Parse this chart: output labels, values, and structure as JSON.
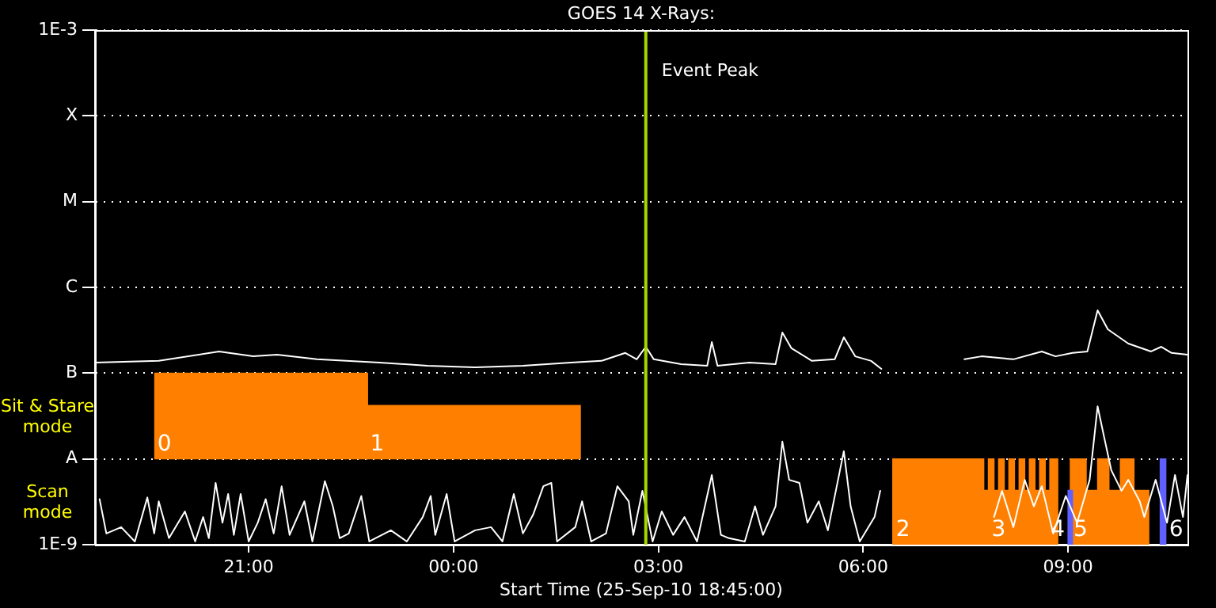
{
  "chart_data": {
    "type": "line",
    "title": "GOES 14 X-Rays:",
    "xlabel": "Start Time (25-Sep-10 18:45:00)",
    "xlim": [
      "--09-25T18:45",
      "--09-26T10:45"
    ],
    "xticks": [
      {
        "value": "--09-25T21:00",
        "label": "21:00"
      },
      {
        "value": "--09-26T00:00",
        "label": "00:00"
      },
      {
        "value": "--09-26T03:00",
        "label": "03:00"
      },
      {
        "value": "--09-26T06:00",
        "label": "06:00"
      },
      {
        "value": "--09-26T09:00",
        "label": "09:00"
      }
    ],
    "log": "y",
    "ylim": [
      1e-09,
      0.001
    ],
    "yticks": [
      {
        "value": 1e-09,
        "label": "1E-9"
      },
      {
        "value": 1e-08,
        "label": "A"
      },
      {
        "value": 1e-07,
        "label": "B"
      },
      {
        "value": 1e-06,
        "label": "C"
      },
      {
        "value": 1e-05,
        "label": "M"
      },
      {
        "value": 0.0001,
        "label": "X"
      },
      {
        "value": 0.001,
        "label": "1E-3"
      }
    ],
    "grid": "y",
    "legend": false,
    "series": [
      {
        "type": "bar",
        "color": "#ff8000",
        "x": [
          "--09-25T21:11",
          "--09-26T00:18"
        ],
        "base": [
          1e-08,
          1e-08
        ],
        "values": [
          9e-08,
          3.2e-08
        ]
      },
      {
        "type": "histogram",
        "color": "#ff8000",
        "bins": [
          "--09-26T06:26",
          "--09-26T07:46",
          "--09-26T07:50",
          "--09-26T07:55",
          "--09-26T07:59",
          "--09-26T08:04",
          "--09-26T08:08",
          "--09-26T08:13",
          "--09-26T08:17",
          "--09-26T08:22",
          "--09-26T08:26",
          "--09-26T08:31",
          "--09-26T08:35",
          "--09-26T08:40",
          "--09-26T08:44",
          "--09-26T08:51",
          "--09-26T09:02",
          "--09-26T09:16",
          "--09-26T09:26",
          "--09-26T09:36",
          "--09-26T09:46",
          "--09-26T09:58",
          "--09-26T10:11"
        ],
        "values": [
          1e-08,
          4.3e-09,
          1e-08,
          4.3e-09,
          1e-08,
          4.3e-09,
          1e-08,
          4.3e-09,
          1e-08,
          4.3e-09,
          1e-08,
          4.3e-09,
          1e-08,
          4.3e-09,
          1e-08,
          null,
          1e-08,
          4.3e-09,
          1e-08,
          4.3e-09,
          1e-08,
          4.3e-09
        ]
      },
      {
        "type": "histogram",
        "color": "#6060ff",
        "bins": [
          "--09-26T09:00",
          "--09-26T09:04"
        ],
        "values": [
          4.3e-09
        ]
      },
      {
        "type": "histogram",
        "color": "#6060ff",
        "bins": [
          "--09-26T10:21",
          "--09-26T10:26"
        ],
        "values": [
          1e-08
        ]
      },
      {
        "color": "#ffffff",
        "x": [
          "--09-25T18:49",
          "--09-25T18:55",
          "--09-25T19:08",
          "--09-25T19:20",
          "--09-25T19:31",
          "--09-25T19:37",
          "--09-25T19:41",
          "--09-25T19:50",
          "--09-25T20:04",
          "--09-25T20:13",
          "--09-25T20:20",
          "--09-25T20:25",
          "--09-25T20:31",
          "--09-25T20:37",
          "--09-25T20:42",
          "--09-25T20:47",
          "--09-25T20:53",
          "--09-25T21:00",
          "--09-25T21:08",
          "--09-25T21:15",
          "--09-25T21:22",
          "--09-25T21:29",
          "--09-25T21:36",
          "--09-25T21:49",
          "--09-25T21:56",
          "--09-25T22:07",
          "--09-25T22:14",
          "--09-25T22:20",
          "--09-25T22:28",
          "--09-25T22:39",
          "--09-25T22:46",
          "--09-25T23:05",
          "--09-25T23:19",
          "--09-25T23:33",
          "--09-25T23:40",
          "--09-25T23:44",
          "--09-25T23:54",
          "--09-26T00:01",
          "--09-26T00:19",
          "--09-26T00:33",
          "--09-26T00:43",
          "--09-26T00:53",
          "--09-26T01:01",
          "--09-26T01:10",
          "--09-26T01:19",
          "--09-26T01:26",
          "--09-26T01:31",
          "--09-26T01:47",
          "--09-26T01:53",
          "--09-26T02:01",
          "--09-26T02:14",
          "--09-26T02:24",
          "--09-26T02:34",
          "--09-26T02:38",
          "--09-26T02:46",
          "--09-26T02:55",
          "--09-26T03:03",
          "--09-26T03:13",
          "--09-26T03:23",
          "--09-26T03:34",
          "--09-26T03:47",
          "--09-26T03:55",
          "--09-26T04:02",
          "--09-26T04:16",
          "--09-26T04:25",
          "--09-26T04:32",
          "--09-26T04:43",
          "--09-26T04:49",
          "--09-26T04:55",
          "--09-26T05:04",
          "--09-26T05:11",
          "--09-26T05:21",
          "--09-26T05:29",
          "--09-26T05:36",
          "--09-26T05:43",
          "--09-26T05:49",
          "--09-26T05:57",
          "--09-26T06:10",
          "--09-26T06:15",
          "--09-26T06:48",
          "--09-26T07:55",
          "--09-26T08:02",
          "--09-26T08:12",
          "--09-26T08:22",
          "--09-26T08:30",
          "--09-26T08:37",
          "--09-26T08:47",
          "--09-26T08:58",
          "--09-26T09:08",
          "--09-26T09:19",
          "--09-26T09:26",
          "--09-26T09:32",
          "--09-26T09:38",
          "--09-26T09:47",
          "--09-26T09:53",
          "--09-26T10:03",
          "--09-26T10:07",
          "--09-26T10:17",
          "--09-26T10:27",
          "--09-26T10:34",
          "--09-26T10:41",
          "--09-26T10:45"
        ],
        "values": [
          3.4e-09,
          1.35e-09,
          1.6e-09,
          1.09e-09,
          3.55e-09,
          1.35e-09,
          3.2e-09,
          1.19e-09,
          2.44e-09,
          1.09e-09,
          2.1e-09,
          1.19e-09,
          5.25e-09,
          1.8e-09,
          3.9e-09,
          1.3e-09,
          3.9e-09,
          1.09e-09,
          1.8e-09,
          3.4e-09,
          1.35e-09,
          4.8e-09,
          1.3e-09,
          3.2e-09,
          1.09e-09,
          5.5e-09,
          2.8e-09,
          1.19e-09,
          1.35e-09,
          3.7e-09,
          1.09e-09,
          1.47e-09,
          1.09e-09,
          2.1e-09,
          3.7e-09,
          1.3e-09,
          3.9e-09,
          1.09e-09,
          1.47e-09,
          1.6e-09,
          1.09e-09,
          3.9e-09,
          1.35e-09,
          2.24e-09,
          4.8e-09,
          5.25e-09,
          1.09e-09,
          1.6e-09,
          3.2e-09,
          1.09e-09,
          1.35e-09,
          4.8e-09,
          3.2e-09,
          1.3e-09,
          4.25e-09,
          1.09e-09,
          2.44e-09,
          1.3e-09,
          2.1e-09,
          1.09e-09,
          6.5e-09,
          1.3e-09,
          1.19e-09,
          1.09e-09,
          2.8e-09,
          1.3e-09,
          2.8e-09,
          1.59e-08,
          5.7e-09,
          5.25e-09,
          1.8e-09,
          3.2e-09,
          1.47e-09,
          4.25e-09,
          1.23e-08,
          2.8e-09,
          1.09e-09,
          2.1e-09,
          4.25e-09,
          null,
          2.1e-09,
          4.25e-09,
          1.6e-09,
          5.7e-09,
          2.8e-09,
          4.8e-09,
          1.35e-09,
          3.7e-09,
          1.8e-09,
          5.7e-09,
          4.1e-08,
          1.73e-08,
          7.4e-09,
          4.25e-09,
          5.7e-09,
          3.2e-09,
          2.1e-09,
          5.7e-09,
          1.8e-09,
          6.5e-09,
          2.1e-09,
          6.5e-09
        ]
      },
      {
        "color": "#ffffff",
        "x": [
          "--09-25T18:45",
          "--09-25T19:41",
          "--09-25T20:34",
          "--09-25T21:04",
          "--09-25T21:25",
          "--09-25T22:00",
          "--09-25T22:55",
          "--09-25T23:37",
          "--09-26T00:19",
          "--09-26T01:01",
          "--09-26T01:43",
          "--09-26T02:10",
          "--09-26T02:31",
          "--09-26T02:41",
          "--09-26T02:49",
          "--09-26T02:56",
          "--09-26T03:20",
          "--09-26T03:43",
          "--09-26T03:47",
          "--09-26T03:52",
          "--09-26T04:20",
          "--09-26T04:43",
          "--09-26T04:49",
          "--09-26T04:57",
          "--09-26T05:15",
          "--09-26T05:35",
          "--09-26T05:43",
          "--09-26T05:53",
          "--09-26T06:07",
          "--09-26T06:16",
          "--09-26T06:54",
          "--09-26T07:29",
          "--09-26T07:44",
          "--09-26T08:12",
          "--09-26T08:37",
          "--09-26T08:49",
          "--09-26T09:04",
          "--09-26T09:17",
          "--09-26T09:26",
          "--09-26T09:35",
          "--09-26T09:53",
          "--09-26T10:13",
          "--09-26T10:22",
          "--09-26T10:31",
          "--09-26T10:45"
        ],
        "values": [
          1.33e-07,
          1.39e-07,
          1.79e-07,
          1.57e-07,
          1.64e-07,
          1.45e-07,
          1.33e-07,
          1.22e-07,
          1.17e-07,
          1.22e-07,
          1.33e-07,
          1.39e-07,
          1.72e-07,
          1.45e-07,
          2.03e-07,
          1.45e-07,
          1.27e-07,
          1.22e-07,
          2.31e-07,
          1.22e-07,
          1.33e-07,
          1.27e-07,
          2.98e-07,
          1.95e-07,
          1.39e-07,
          1.45e-07,
          2.62e-07,
          1.57e-07,
          1.39e-07,
          1.12e-07,
          null,
          1.45e-07,
          1.57e-07,
          1.45e-07,
          1.79e-07,
          1.57e-07,
          1.72e-07,
          1.79e-07,
          5.4e-07,
          3.24e-07,
          2.21e-07,
          1.79e-07,
          2.03e-07,
          1.72e-07,
          1.64e-07
        ]
      }
    ],
    "ref_lines": [
      {
        "axis": "x",
        "value": "--09-26T02:49",
        "label": "Event Peak",
        "color": "#a8d400"
      }
    ],
    "annotations": [
      "Sit & Stare mode",
      "Scan mode",
      {
        "text": "0",
        "x": "--09-25T19:37",
        "y": 1e-08
      },
      {
        "text": "1",
        "x": "--09-25T22:44",
        "y": 1e-08
      },
      {
        "text": "2",
        "x": "--09-26T06:26",
        "y": 1e-09
      },
      {
        "text": "3",
        "x": "--09-26T07:50",
        "y": 1e-09
      },
      {
        "text": "4",
        "x": "--09-26T09:00",
        "y": 1e-09
      },
      {
        "text": "5",
        "x": "--09-26T09:02",
        "y": 1e-09
      },
      {
        "text": "6",
        "x": "--09-26T10:26",
        "y": 1e-09
      }
    ]
  }
}
